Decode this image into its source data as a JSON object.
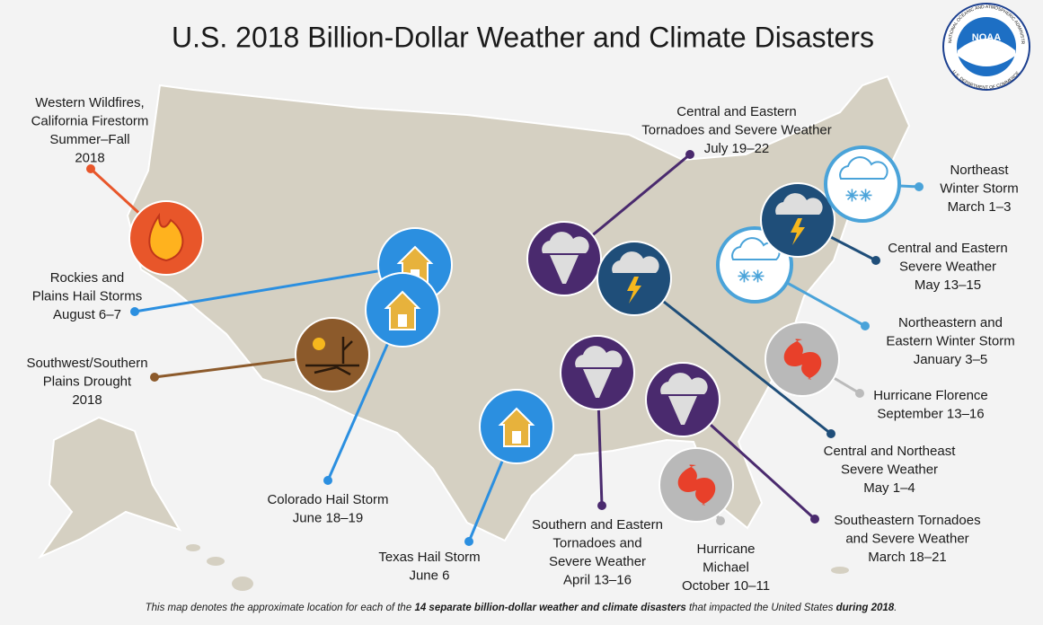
{
  "title": "U.S. 2018 Billion-Dollar Weather and Climate Disasters",
  "logo": {
    "text": "NOAA",
    "ring_top": "NATIONAL OCEANIC AND ATMOSPHERIC ADMINISTRATION",
    "ring_bottom": "U.S. DEPARTMENT OF COMMERCE"
  },
  "disasters": [
    {
      "lines": [
        "Western Wildfires,",
        "California Firestorm",
        "Summer–Fall",
        "2018"
      ]
    },
    {
      "lines": [
        "Rockies and",
        "Plains Hail Storms",
        "August 6–7"
      ]
    },
    {
      "lines": [
        "Southwest/Southern",
        "Plains Drought",
        "2018"
      ]
    },
    {
      "lines": [
        "Colorado Hail Storm",
        "June 18–19"
      ]
    },
    {
      "lines": [
        "Texas Hail Storm",
        "June 6"
      ]
    },
    {
      "lines": [
        "Central and Eastern",
        "Tornadoes and Severe Weather",
        "July 19–22"
      ]
    },
    {
      "lines": [
        "Southern and Eastern",
        "Tornadoes and",
        "Severe Weather",
        "April 13–16"
      ]
    },
    {
      "lines": [
        "Central and Northeast",
        "Severe Weather",
        "May 1–4"
      ]
    },
    {
      "lines": [
        "Southeastern Tornadoes",
        "and Severe Weather",
        "March 18–21"
      ]
    },
    {
      "lines": [
        "Hurricane",
        "Michael",
        "October 10–11"
      ]
    },
    {
      "lines": [
        "Hurricane Florence",
        "September 13–16"
      ]
    },
    {
      "lines": [
        "Northeastern and",
        "Eastern Winter Storm",
        "January 3–5"
      ]
    },
    {
      "lines": [
        "Central and Eastern",
        "Severe Weather",
        "May 13–15"
      ]
    },
    {
      "lines": [
        "Northeast",
        "Winter Storm",
        "March 1–3"
      ]
    }
  ],
  "footnote": [
    "This map denotes the approximate location for each of the ",
    "14 separate billion-dollar weather and climate disasters",
    " that impacted the United States ",
    "during 2018",
    "."
  ]
}
